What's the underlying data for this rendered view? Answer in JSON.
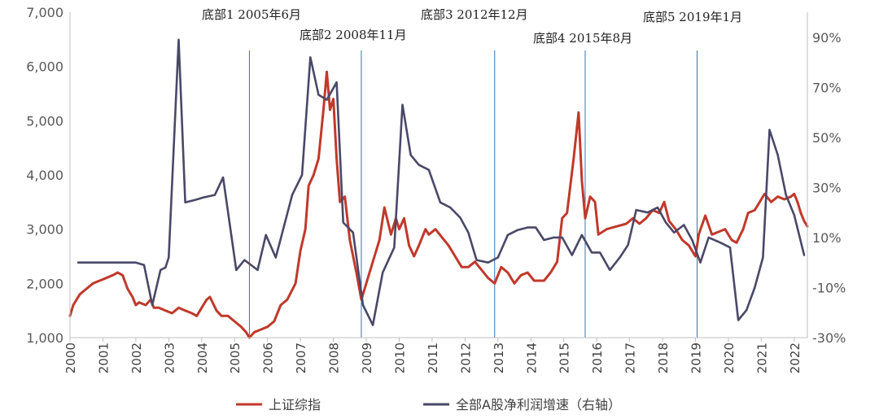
{
  "chart_data": {
    "type": "line",
    "title": "",
    "left_axis": {
      "min": 1000,
      "max": 7000,
      "step": 1000,
      "tick_labels": [
        "1,000",
        "2,000",
        "3,000",
        "4,000",
        "5,000",
        "6,000",
        "7,000"
      ]
    },
    "right_axis": {
      "min": -30,
      "max": 100,
      "step": 20,
      "tick_labels": [
        "-30%",
        "-10%",
        "10%",
        "30%",
        "50%",
        "70%",
        "90%"
      ]
    },
    "x_axis": {
      "min": 2000,
      "max": 2022.4,
      "tick_labels": [
        "2000",
        "2001",
        "2002",
        "2003",
        "2004",
        "2005",
        "2006",
        "2007",
        "2008",
        "2009",
        "2010",
        "2011",
        "2012",
        "2013",
        "2014",
        "2015",
        "2016",
        "2017",
        "2018",
        "2019",
        "2020",
        "2021",
        "2022"
      ]
    },
    "grid": false,
    "legend_position": "bottom",
    "annotations": [
      {
        "label": "底部1 2005年6月",
        "x": 2005.45
      },
      {
        "label": "底部2 2008年11月",
        "x": 2008.85
      },
      {
        "label": "底部3 2012年12月",
        "x": 2012.9
      },
      {
        "label": "底部4 2015年8月",
        "x": 2015.65
      },
      {
        "label": "底部5 2019年1月",
        "x": 2019.05
      }
    ],
    "series": [
      {
        "name": "上证综指",
        "axis": "left",
        "color": "#c0392b",
        "points": [
          [
            2000.0,
            1400
          ],
          [
            2000.1,
            1600
          ],
          [
            2000.3,
            1800
          ],
          [
            2000.5,
            1900
          ],
          [
            2000.7,
            2000
          ],
          [
            2000.9,
            2050
          ],
          [
            2001.1,
            2100
          ],
          [
            2001.3,
            2150
          ],
          [
            2001.45,
            2200
          ],
          [
            2001.6,
            2150
          ],
          [
            2001.75,
            1900
          ],
          [
            2001.9,
            1750
          ],
          [
            2002.0,
            1600
          ],
          [
            2002.1,
            1650
          ],
          [
            2002.3,
            1600
          ],
          [
            2002.45,
            1700
          ],
          [
            2002.55,
            1550
          ],
          [
            2002.7,
            1550
          ],
          [
            2002.9,
            1500
          ],
          [
            2003.1,
            1450
          ],
          [
            2003.3,
            1550
          ],
          [
            2003.5,
            1500
          ],
          [
            2003.7,
            1450
          ],
          [
            2003.85,
            1400
          ],
          [
            2004.0,
            1550
          ],
          [
            2004.15,
            1700
          ],
          [
            2004.25,
            1750
          ],
          [
            2004.45,
            1500
          ],
          [
            2004.6,
            1400
          ],
          [
            2004.8,
            1400
          ],
          [
            2005.0,
            1300
          ],
          [
            2005.2,
            1200
          ],
          [
            2005.35,
            1100
          ],
          [
            2005.45,
            1000
          ],
          [
            2005.6,
            1100
          ],
          [
            2005.8,
            1150
          ],
          [
            2006.0,
            1200
          ],
          [
            2006.2,
            1300
          ],
          [
            2006.4,
            1600
          ],
          [
            2006.6,
            1700
          ],
          [
            2006.85,
            2000
          ],
          [
            2007.0,
            2600
          ],
          [
            2007.15,
            3000
          ],
          [
            2007.25,
            3800
          ],
          [
            2007.4,
            4000
          ],
          [
            2007.55,
            4300
          ],
          [
            2007.7,
            5200
          ],
          [
            2007.8,
            5900
          ],
          [
            2007.9,
            5200
          ],
          [
            2008.0,
            5400
          ],
          [
            2008.1,
            4300
          ],
          [
            2008.2,
            3500
          ],
          [
            2008.35,
            3600
          ],
          [
            2008.5,
            2800
          ],
          [
            2008.7,
            2200
          ],
          [
            2008.85,
            1700
          ],
          [
            2009.0,
            2000
          ],
          [
            2009.2,
            2400
          ],
          [
            2009.4,
            2800
          ],
          [
            2009.55,
            3400
          ],
          [
            2009.75,
            2900
          ],
          [
            2009.9,
            3200
          ],
          [
            2010.0,
            3000
          ],
          [
            2010.15,
            3200
          ],
          [
            2010.3,
            2700
          ],
          [
            2010.45,
            2500
          ],
          [
            2010.6,
            2700
          ],
          [
            2010.8,
            3000
          ],
          [
            2010.9,
            2900
          ],
          [
            2011.1,
            3000
          ],
          [
            2011.3,
            2850
          ],
          [
            2011.5,
            2700
          ],
          [
            2011.7,
            2500
          ],
          [
            2011.9,
            2300
          ],
          [
            2012.1,
            2300
          ],
          [
            2012.3,
            2400
          ],
          [
            2012.5,
            2250
          ],
          [
            2012.7,
            2100
          ],
          [
            2012.9,
            2000
          ],
          [
            2013.1,
            2300
          ],
          [
            2013.3,
            2200
          ],
          [
            2013.5,
            2000
          ],
          [
            2013.7,
            2150
          ],
          [
            2013.9,
            2200
          ],
          [
            2014.1,
            2050
          ],
          [
            2014.4,
            2050
          ],
          [
            2014.6,
            2200
          ],
          [
            2014.8,
            2400
          ],
          [
            2014.95,
            3200
          ],
          [
            2015.1,
            3300
          ],
          [
            2015.3,
            4300
          ],
          [
            2015.45,
            5150
          ],
          [
            2015.55,
            3900
          ],
          [
            2015.65,
            3200
          ],
          [
            2015.8,
            3600
          ],
          [
            2015.95,
            3500
          ],
          [
            2016.05,
            2900
          ],
          [
            2016.3,
            3000
          ],
          [
            2016.6,
            3050
          ],
          [
            2016.9,
            3100
          ],
          [
            2017.1,
            3200
          ],
          [
            2017.3,
            3100
          ],
          [
            2017.5,
            3200
          ],
          [
            2017.7,
            3350
          ],
          [
            2017.9,
            3300
          ],
          [
            2018.05,
            3500
          ],
          [
            2018.2,
            3150
          ],
          [
            2018.4,
            3000
          ],
          [
            2018.6,
            2800
          ],
          [
            2018.8,
            2700
          ],
          [
            2019.0,
            2500
          ],
          [
            2019.1,
            2900
          ],
          [
            2019.3,
            3250
          ],
          [
            2019.5,
            2900
          ],
          [
            2019.7,
            2950
          ],
          [
            2019.9,
            3000
          ],
          [
            2020.1,
            2800
          ],
          [
            2020.25,
            2750
          ],
          [
            2020.45,
            3000
          ],
          [
            2020.6,
            3300
          ],
          [
            2020.8,
            3350
          ],
          [
            2021.0,
            3550
          ],
          [
            2021.1,
            3650
          ],
          [
            2021.3,
            3500
          ],
          [
            2021.5,
            3600
          ],
          [
            2021.7,
            3550
          ],
          [
            2021.9,
            3600
          ],
          [
            2022.0,
            3650
          ],
          [
            2022.1,
            3500
          ],
          [
            2022.2,
            3300
          ],
          [
            2022.3,
            3150
          ],
          [
            2022.4,
            3050
          ]
        ]
      },
      {
        "name": "全部A股净利润增速（右轴）",
        "axis": "right",
        "color": "#4a4868",
        "points": [
          [
            2000.25,
            0
          ],
          [
            2002.0,
            0
          ],
          [
            2002.25,
            -1
          ],
          [
            2002.5,
            -17
          ],
          [
            2002.75,
            -3
          ],
          [
            2002.9,
            -2
          ],
          [
            2003.0,
            2
          ],
          [
            2003.3,
            89
          ],
          [
            2003.5,
            24
          ],
          [
            2003.8,
            25
          ],
          [
            2004.05,
            26
          ],
          [
            2004.4,
            27
          ],
          [
            2004.65,
            34
          ],
          [
            2005.05,
            -3
          ],
          [
            2005.3,
            1
          ],
          [
            2005.7,
            -3
          ],
          [
            2005.95,
            11
          ],
          [
            2006.25,
            2
          ],
          [
            2006.45,
            12
          ],
          [
            2006.75,
            27
          ],
          [
            2007.05,
            35
          ],
          [
            2007.3,
            82
          ],
          [
            2007.55,
            67
          ],
          [
            2007.8,
            65
          ],
          [
            2008.1,
            72
          ],
          [
            2008.3,
            16
          ],
          [
            2008.6,
            12
          ],
          [
            2008.9,
            -17
          ],
          [
            2009.2,
            -25
          ],
          [
            2009.5,
            -4
          ],
          [
            2009.85,
            6
          ],
          [
            2010.1,
            63
          ],
          [
            2010.35,
            43
          ],
          [
            2010.6,
            39
          ],
          [
            2010.9,
            37
          ],
          [
            2011.25,
            24
          ],
          [
            2011.55,
            22
          ],
          [
            2011.85,
            18
          ],
          [
            2012.1,
            12
          ],
          [
            2012.35,
            1
          ],
          [
            2012.7,
            0
          ],
          [
            2013.0,
            2
          ],
          [
            2013.3,
            11
          ],
          [
            2013.6,
            13
          ],
          [
            2013.9,
            14
          ],
          [
            2014.15,
            14
          ],
          [
            2014.4,
            9
          ],
          [
            2014.7,
            10
          ],
          [
            2014.95,
            10
          ],
          [
            2015.25,
            3
          ],
          [
            2015.55,
            11
          ],
          [
            2015.85,
            4
          ],
          [
            2016.1,
            4
          ],
          [
            2016.4,
            -3
          ],
          [
            2016.7,
            2
          ],
          [
            2016.95,
            7
          ],
          [
            2017.2,
            21
          ],
          [
            2017.55,
            20
          ],
          [
            2017.85,
            22
          ],
          [
            2018.1,
            16
          ],
          [
            2018.35,
            12
          ],
          [
            2018.65,
            15
          ],
          [
            2018.9,
            9
          ],
          [
            2019.15,
            0
          ],
          [
            2019.4,
            10
          ],
          [
            2019.75,
            8
          ],
          [
            2020.05,
            6
          ],
          [
            2020.3,
            -23
          ],
          [
            2020.55,
            -19
          ],
          [
            2020.8,
            -10
          ],
          [
            2021.05,
            2
          ],
          [
            2021.25,
            53
          ],
          [
            2021.5,
            43
          ],
          [
            2021.75,
            27
          ],
          [
            2022.0,
            19
          ],
          [
            2022.3,
            3
          ]
        ]
      }
    ]
  }
}
